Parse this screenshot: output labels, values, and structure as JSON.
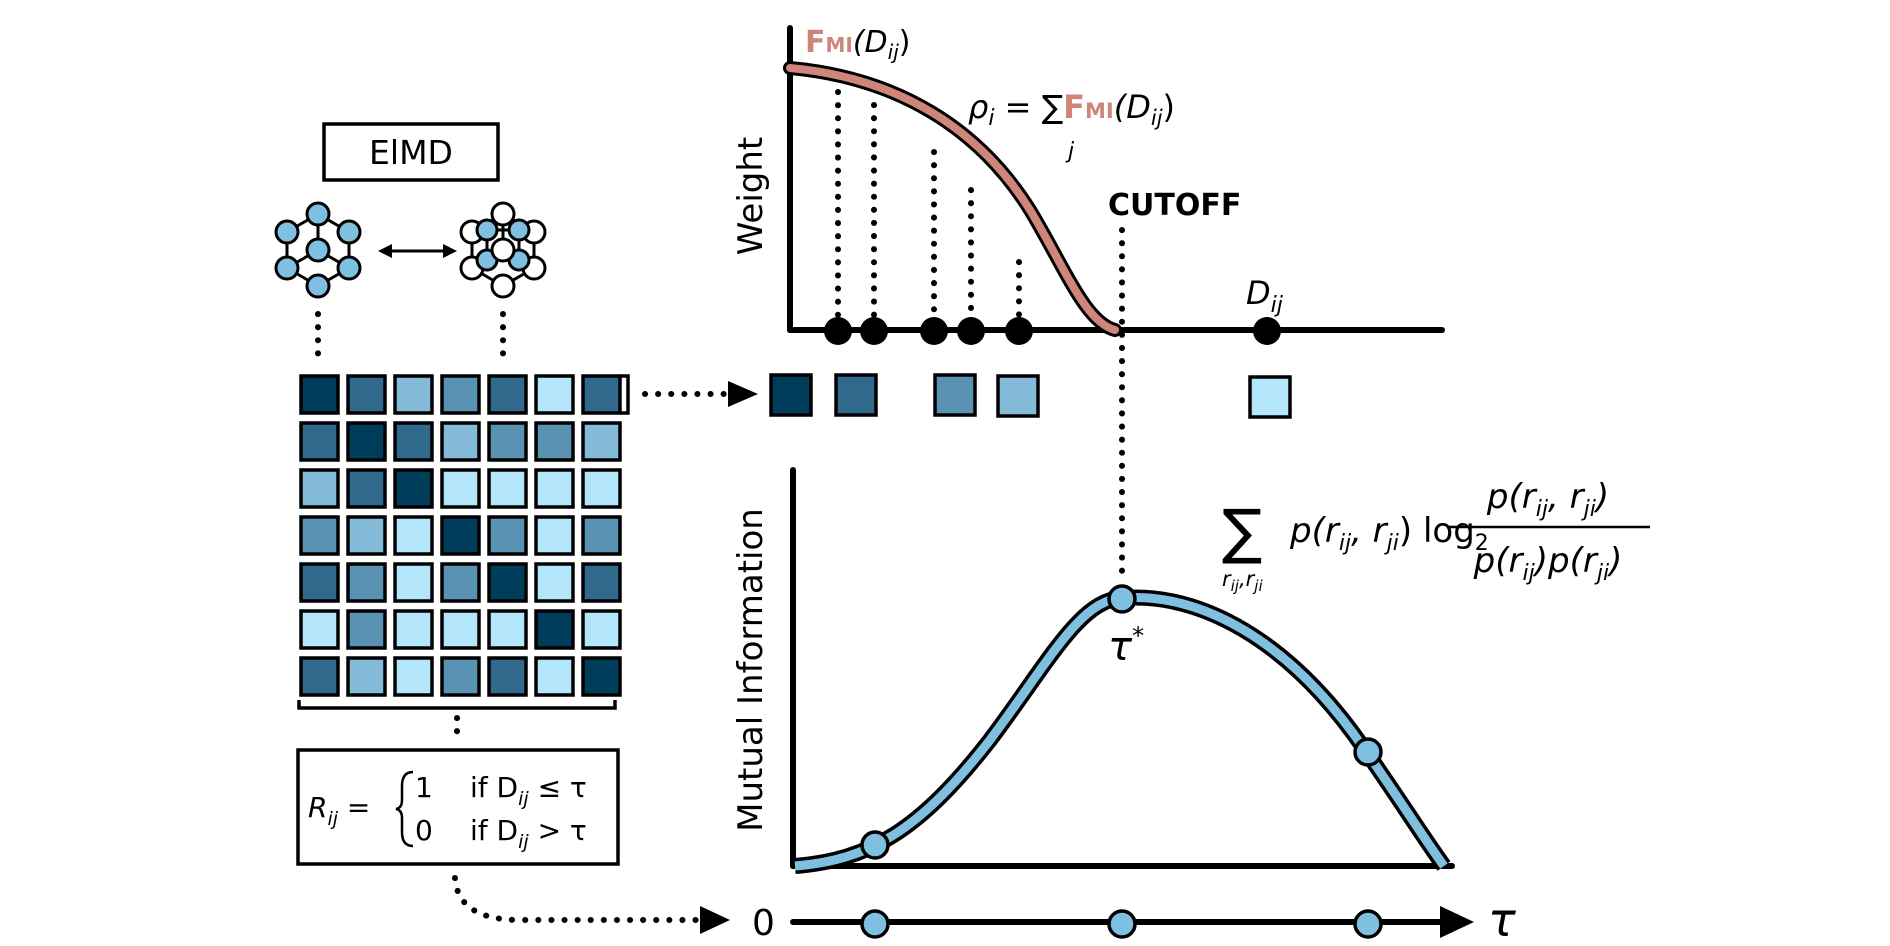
{
  "method_box_label": "ElMD",
  "arrow_double": "↔",
  "weight_plot": {
    "ylabel": "Weight",
    "curve_label_bold": "F",
    "curve_label_sub": "MI",
    "curve_label_rest": "(D",
    "curve_label_ij": "ij",
    "curve_label_close": ")",
    "rho_eq_left": "ρ",
    "rho_sub": "i",
    "rho_eq_mid": " = ∑",
    "rho_sum_index": "j",
    "rho_bold": "F",
    "rho_bold_sub": "MI",
    "rho_rest": "(D",
    "rho_rest_sub": "ij",
    "rho_close": ")",
    "cutoff_label": "CUTOFF",
    "point_label": "D",
    "point_label_sub": "ij",
    "curve_color": "#d0857a"
  },
  "mi_plot": {
    "ylabel": "Mutual Information",
    "formula_sum": "∑",
    "formula_sum_sub": "r",
    "formula_sum_sub2": "ij",
    "formula_sum_sub3": ",r",
    "formula_sum_sub4": "ji",
    "formula_p": "p(r",
    "formula_p_sub1": "ij",
    "formula_p_mid": ", r",
    "formula_p_sub2": "ji",
    "formula_p_close": ") log",
    "formula_log_base": "2",
    "frac_num": "p(r",
    "frac_num_sub1": "ij",
    "frac_num_mid": ", r",
    "frac_num_sub2": "ji",
    "frac_num_close": ")",
    "frac_den": "p(r",
    "frac_den_sub1": "ij",
    "frac_den_mid": ")p(r",
    "frac_den_sub2": "ji",
    "frac_den_close": ")",
    "peak_label": "τ",
    "peak_label_sup": "*",
    "curve_color": "#7fbfdf"
  },
  "axis": {
    "zero_label": "0",
    "tau_label": "τ"
  },
  "rule_box": {
    "lhs": "R",
    "lhs_sub": "ij",
    "eq": " = ",
    "case1_val": "1",
    "case1_cond": "if D",
    "case1_sub": "ij",
    "case1_rel": " ≤ τ",
    "case2_val": "0",
    "case2_cond": "if D",
    "case2_sub": "ij",
    "case2_rel": " > τ"
  },
  "matrix": {
    "palette": [
      "#003d5b",
      "#31698c",
      "#5a92b3",
      "#83bbd8",
      "#b3e6fa"
    ],
    "rows": [
      [
        0,
        1,
        3,
        2,
        1,
        4,
        1
      ],
      [
        1,
        0,
        1,
        3,
        2,
        2,
        3
      ],
      [
        3,
        1,
        0,
        4,
        4,
        4,
        4
      ],
      [
        2,
        3,
        4,
        0,
        2,
        4,
        2
      ],
      [
        1,
        2,
        4,
        2,
        0,
        4,
        1
      ],
      [
        4,
        2,
        4,
        4,
        4,
        0,
        4
      ],
      [
        1,
        3,
        4,
        2,
        1,
        4,
        0
      ]
    ]
  },
  "extracted_row_colors": [
    "#003d5b",
    "#31698c",
    "#5a92b3",
    "#83bbd8",
    "#b3e6fa"
  ]
}
